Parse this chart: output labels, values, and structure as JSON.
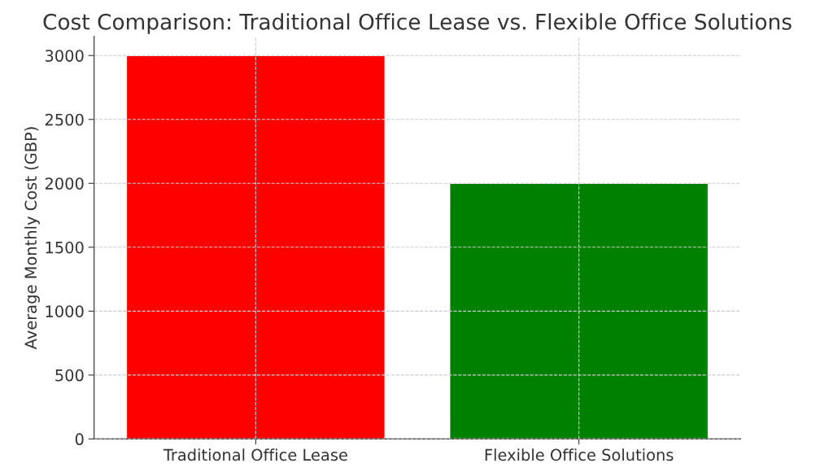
{
  "chart_data": {
    "type": "bar",
    "title": "Cost Comparison: Traditional Office Lease vs. Flexible Office Solutions",
    "ylabel": "Average Monthly Cost (GBP)",
    "categories": [
      "Traditional Office Lease",
      "Flexible Office Solutions"
    ],
    "values": [
      3000,
      2000
    ],
    "colors": [
      "#ff0000",
      "#008000"
    ],
    "ylim": [
      0,
      3150
    ],
    "yticks": [
      0,
      500,
      1000,
      1500,
      2000,
      2500,
      3000
    ],
    "grid": true
  }
}
